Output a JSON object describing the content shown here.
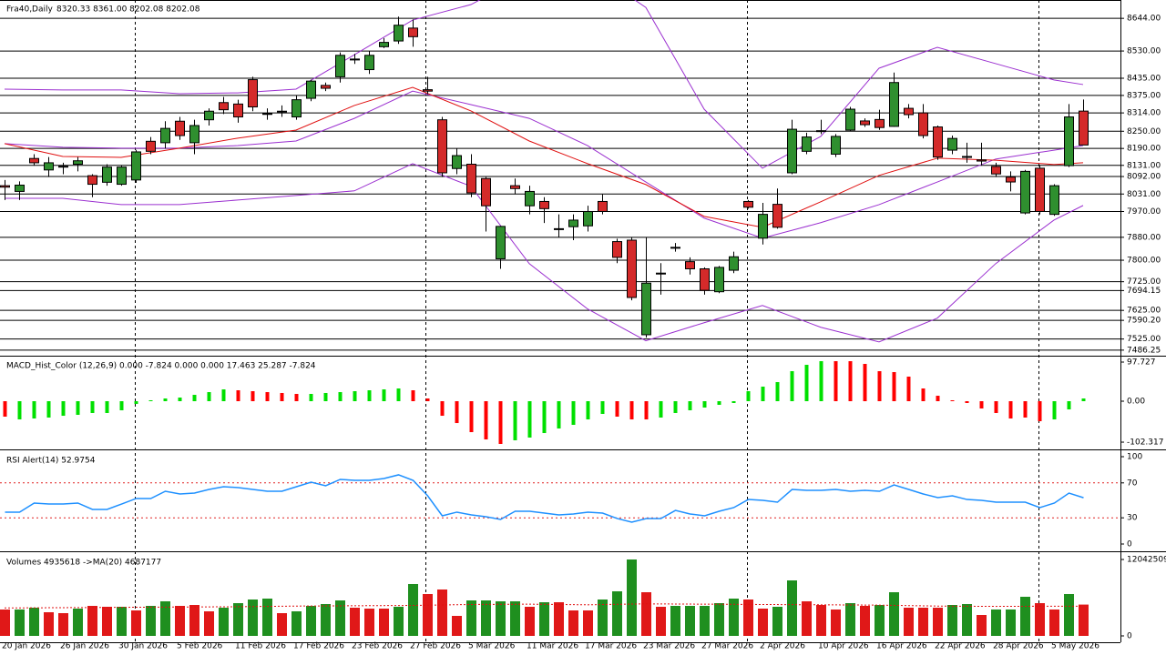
{
  "chart_data": [
    {
      "type": "candlestick",
      "title": "Fra40,Daily",
      "ohlc_label": "8320.33 8361.00 8202.08 8202.08",
      "bull_color": "#2f8f2f",
      "bear_color": "#d42a2a",
      "grid": true,
      "categories": [
        "20 Jan 2026",
        null,
        null,
        null,
        "26 Jan 2026",
        null,
        null,
        null,
        "30 Jan 2026",
        null,
        null,
        null,
        "5 Feb 2026",
        null,
        null,
        null,
        "11 Feb 2026",
        null,
        null,
        null,
        "17 Feb 2026",
        null,
        null,
        null,
        "23 Feb 2026",
        null,
        null,
        null,
        "27 Feb 2026",
        null,
        null,
        null,
        "5 Mar 2026",
        null,
        null,
        null,
        "11 Mar 2026",
        null,
        null,
        null,
        "17 Mar 2026",
        null,
        null,
        null,
        "23 Mar 2026",
        null,
        null,
        null,
        "27 Mar 2026",
        null,
        null,
        null,
        "2 Apr 2026",
        null,
        null,
        null,
        "10 Apr 2026",
        null,
        null,
        null,
        "16 Apr 2026",
        null,
        null,
        null,
        "22 Apr 2026",
        null,
        null,
        null,
        "28 Apr 2026",
        null,
        null,
        null,
        "5 May 2026",
        null,
        null
      ],
      "open": [
        8060,
        8040,
        8155,
        8115,
        8128,
        8135,
        8095,
        8072,
        8065,
        8080,
        8215,
        8210,
        8285,
        8210,
        8290,
        8350,
        8345,
        8430,
        8310,
        8318,
        8300,
        8365,
        8410,
        8440,
        8500,
        8465,
        8545,
        8565,
        8610,
        8395,
        8290,
        8120,
        8135,
        8085,
        7805,
        8060,
        7990,
        8005,
        7910,
        7917,
        7920,
        8005,
        7865,
        7870,
        7540,
        7755,
        7845,
        7795,
        7770,
        7690,
        7765,
        8005,
        7877,
        7995,
        8105,
        8180,
        8250,
        8170,
        8254,
        8286,
        8291,
        8267,
        8330,
        8314,
        8265,
        8184,
        8162,
        8150,
        8127,
        8090,
        7965,
        8121,
        7960,
        8130,
        8320.33
      ],
      "high": [
        8080,
        8075,
        8170,
        8160,
        8140,
        8160,
        8100,
        8135,
        8130,
        8185,
        8230,
        8285,
        8300,
        8290,
        8330,
        8370,
        8360,
        8440,
        8330,
        8340,
        8375,
        8430,
        8420,
        8525,
        8520,
        8530,
        8575,
        8650,
        8640,
        8440,
        8300,
        8190,
        8170,
        8090,
        7920,
        8085,
        8060,
        8020,
        7960,
        7960,
        7990,
        8030,
        7875,
        7880,
        7880,
        7790,
        7860,
        7810,
        7775,
        7780,
        7830,
        8010,
        8000,
        8050,
        8290,
        8245,
        8290,
        8240,
        8335,
        8295,
        8325,
        8455,
        8345,
        8345,
        8270,
        8235,
        8210,
        8210,
        8140,
        8110,
        8115,
        8130,
        8065,
        8345,
        8361
      ],
      "low": [
        8010,
        8010,
        8130,
        8090,
        8100,
        8110,
        8020,
        8060,
        8060,
        8070,
        8170,
        8190,
        8220,
        8170,
        8270,
        8310,
        8280,
        8320,
        8290,
        8300,
        8290,
        8355,
        8390,
        8420,
        8485,
        8450,
        8540,
        8555,
        8545,
        8380,
        8090,
        8100,
        8020,
        7900,
        7770,
        8030,
        7960,
        7930,
        7880,
        7870,
        7900,
        7960,
        7790,
        7660,
        7530,
        7680,
        7830,
        7750,
        7680,
        7685,
        7755,
        7980,
        7855,
        7910,
        8100,
        8170,
        8240,
        8160,
        8250,
        8265,
        8255,
        8265,
        8295,
        8225,
        8150,
        8170,
        8140,
        8130,
        8090,
        8040,
        7960,
        7960,
        7955,
        8125,
        8202.08
      ],
      "close": [
        8055,
        8062,
        8140,
        8140,
        8125,
        8147,
        8065,
        8125,
        8125,
        8178,
        8180,
        8260,
        8235,
        8270,
        8320,
        8325,
        8300,
        8335,
        8312,
        8320,
        8360,
        8425,
        8400,
        8515,
        8502,
        8515,
        8560,
        8620,
        8580,
        8390,
        8105,
        8165,
        8035,
        7990,
        7918,
        8050,
        8040,
        7980,
        7908,
        7940,
        7970,
        7970,
        7810,
        7670,
        7720,
        7753,
        7843,
        7770,
        7695,
        7775,
        7812,
        7985,
        7960,
        7915,
        8257,
        8230,
        8252,
        8232,
        8327,
        8273,
        8263,
        8420,
        8308,
        8235,
        8160,
        8225,
        8160,
        8146,
        8101,
        8073,
        8110,
        7970,
        8060,
        8300,
        8202.08
      ],
      "overlays": [
        {
          "color": "#9b30d0",
          "x": [
            0,
            4,
            8,
            12,
            16,
            20,
            24,
            28,
            32,
            36,
            40,
            44,
            48,
            52,
            56,
            60,
            64,
            68,
            72,
            74
          ],
          "values": [
            8397,
            8394,
            8394,
            8381,
            8384,
            8397,
            8517,
            8638,
            8692,
            8800,
            8820,
            8682,
            8327,
            8121,
            8232,
            8470,
            8543,
            8486,
            8429,
            8413
          ]
        },
        {
          "color": "#9b30d0",
          "x": [
            0,
            4,
            8,
            12,
            16,
            20,
            24,
            28,
            32,
            36,
            40,
            44,
            48,
            52,
            56,
            60,
            64,
            68,
            72,
            74
          ],
          "values": [
            8207,
            8194,
            8191,
            8191,
            8200,
            8216,
            8295,
            8390,
            8343,
            8295,
            8200,
            8073,
            7947,
            7877,
            7931,
            7994,
            8073,
            8153,
            8184,
            8200
          ]
        },
        {
          "color": "#9b30d0",
          "x": [
            0,
            4,
            8,
            12,
            16,
            20,
            24,
            28,
            32,
            36,
            40,
            44,
            48,
            52,
            56,
            60,
            64,
            68,
            72,
            74
          ],
          "values": [
            8016,
            8016,
            7994,
            7994,
            8010,
            8026,
            8042,
            8137,
            8058,
            7788,
            7630,
            7519,
            7582,
            7642,
            7566,
            7515,
            7598,
            7788,
            7940,
            7991
          ]
        },
        {
          "color": "#e01010",
          "x": [
            0,
            4,
            8,
            12,
            16,
            20,
            24,
            28,
            32,
            36,
            40,
            44,
            48,
            52,
            56,
            60,
            64,
            68,
            72,
            74
          ],
          "values": [
            8207,
            8162,
            8159,
            8191,
            8226,
            8254,
            8340,
            8403,
            8321,
            8216,
            8137,
            8064,
            7953,
            7915,
            8004,
            8096,
            8156,
            8149,
            8134,
            8140
          ]
        }
      ],
      "ylim": [
        7470,
        8708
      ],
      "yticks": [
        {
          "value": 8644,
          "label": "8644.00"
        },
        {
          "value": 8530,
          "label": "8530.00"
        },
        {
          "value": 8435,
          "label": "8435.00"
        },
        {
          "value": 8375,
          "label": "8375.00"
        },
        {
          "value": 8314,
          "label": "8314.00"
        },
        {
          "value": 8250,
          "label": "8250.00"
        },
        {
          "value": 8190,
          "label": "8190.00"
        },
        {
          "value": 8131,
          "label": "8131.00"
        },
        {
          "value": 8092,
          "label": "8092.00"
        },
        {
          "value": 8031,
          "label": "8031.00"
        },
        {
          "value": 7970,
          "label": "7970.00"
        },
        {
          "value": 7880,
          "label": "7880.00"
        },
        {
          "value": 7800,
          "label": "7800.00"
        },
        {
          "value": 7725,
          "label": "7725.00"
        },
        7694.15,
        {
          "value": 7625,
          "label": "7625.00"
        },
        {
          "value": 7590.2,
          "label": "7590.20"
        },
        {
          "value": 7525,
          "label": "7525.00"
        },
        7486.25
      ]
    },
    {
      "type": "bar",
      "title": "MACD_Hist_Color (12,26,9) 0.000 -7.824 0.000 0.000 17.463 25.287 -7.824",
      "values": [
        -38.6,
        -45.5,
        -43.2,
        -40.9,
        -36.4,
        -34.1,
        -29.5,
        -29.5,
        -22.7,
        -6.8,
        2.3,
        6.8,
        9.1,
        15.9,
        22.7,
        29.5,
        27.3,
        25.0,
        22.7,
        20.5,
        18.2,
        18.2,
        20.5,
        22.7,
        25.0,
        27.3,
        29.5,
        31.8,
        27.3,
        6.8,
        -36.4,
        -54.6,
        -77.3,
        -95.5,
        -106.8,
        -97.7,
        -90.9,
        -79.6,
        -68.2,
        -59.1,
        -45.5,
        -31.8,
        -38.6,
        -45.5,
        -45.5,
        -40.9,
        -29.5,
        -22.7,
        -15.9,
        -9.1,
        -4.5,
        25.0,
        36.4,
        47.7,
        75.0,
        90.9,
        100.0,
        100.0,
        100.0,
        93.2,
        75.0,
        72.7,
        61.4,
        31.8,
        13.6,
        2.3,
        -4.5,
        -18.2,
        -29.5,
        -43.2,
        -40.9,
        -50.0,
        -45.5,
        -20.5,
        6.8
      ],
      "colors": [
        "#ff0000",
        "#00e000",
        "#00e000",
        "#00e000",
        "#00e000",
        "#00e000",
        "#00e000",
        "#00e000",
        "#00e000",
        "#00e000",
        "#00e000",
        "#00e000",
        "#00e000",
        "#00e000",
        "#00e000",
        "#00e000",
        "#ff0000",
        "#ff0000",
        "#ff0000",
        "#ff0000",
        "#ff0000",
        "#00e000",
        "#00e000",
        "#00e000",
        "#00e000",
        "#00e000",
        "#00e000",
        "#00e000",
        "#ff0000",
        "#ff0000",
        "#ff0000",
        "#ff0000",
        "#ff0000",
        "#ff0000",
        "#ff0000",
        "#00e000",
        "#00e000",
        "#00e000",
        "#00e000",
        "#00e000",
        "#00e000",
        "#00e000",
        "#ff0000",
        "#ff0000",
        "#ff0000",
        "#00e000",
        "#00e000",
        "#00e000",
        "#00e000",
        "#00e000",
        "#00e000",
        "#00e000",
        "#00e000",
        "#00e000",
        "#00e000",
        "#00e000",
        "#00e000",
        "#ff0000",
        "#ff0000",
        "#ff0000",
        "#ff0000",
        "#ff0000",
        "#ff0000",
        "#ff0000",
        "#ff0000",
        "#ff0000",
        "#ff0000",
        "#ff0000",
        "#ff0000",
        "#ff0000",
        "#ff0000",
        "#ff0000",
        "#00e000",
        "#00e000",
        "#00e000"
      ],
      "ylim": [
        -115.9,
        111.4
      ],
      "yticks": [
        97.727,
        {
          "value": 0,
          "label": "0.00"
        },
        -102.317
      ]
    },
    {
      "type": "line",
      "title": "RSI Alert(14) 52.9754",
      "color": "#1e90ff",
      "level_color": "#e02020",
      "values": [
        36.5,
        36.5,
        46.9,
        45.8,
        45.8,
        46.9,
        39.6,
        39.6,
        45.8,
        52.1,
        52.1,
        60.4,
        57.3,
        58.3,
        62.5,
        65.6,
        64.6,
        62.5,
        60.4,
        60.4,
        65.6,
        70.8,
        66.7,
        74.0,
        72.9,
        72.9,
        75.0,
        79.2,
        72.9,
        55.2,
        32.3,
        36.5,
        33.3,
        31.3,
        28.1,
        37.5,
        37.5,
        35.4,
        33.3,
        34.4,
        36.5,
        35.4,
        29.2,
        25.0,
        29.2,
        29.2,
        38.5,
        34.4,
        32.3,
        37.5,
        41.7,
        51.0,
        50.0,
        47.9,
        62.5,
        61.5,
        61.5,
        62.5,
        60.4,
        61.5,
        60.4,
        67.7,
        62.5,
        57.3,
        53.1,
        55.2,
        51.0,
        50.0,
        47.9,
        47.9,
        47.9,
        41.7,
        46.9,
        58.3,
        52.98
      ],
      "levels": [
        70,
        30
      ],
      "ylim": [
        -6.25,
        106.25
      ],
      "yticks": [
        100,
        70,
        30,
        0
      ]
    },
    {
      "type": "bar",
      "title": "Volumes 4935618  ->MA(20) 4687177",
      "values": [
        4158000,
        4158000,
        4444000,
        3727000,
        3584000,
        4301000,
        4731000,
        4588000,
        4588000,
        4014000,
        4731000,
        5448000,
        4731000,
        4874000,
        3871000,
        4444000,
        5161000,
        5735000,
        5878000,
        3584000,
        3871000,
        4731000,
        5018000,
        5591000,
        4444000,
        4301000,
        4301000,
        4588000,
        8172000,
        6595000,
        7312000,
        3154000,
        5591000,
        5591000,
        5448000,
        5448000,
        4588000,
        5304000,
        5304000,
        4014000,
        4014000,
        5735000,
        7025000,
        12042509,
        6881000,
        4588000,
        4731000,
        4731000,
        4731000,
        5161000,
        5878000,
        5735000,
        4301000,
        4588000,
        8745000,
        5448000,
        4874000,
        4158000,
        5161000,
        4731000,
        4874000,
        6881000,
        4444000,
        4444000,
        4444000,
        4874000,
        5018000,
        3297000,
        4158000,
        4158000,
        6165000,
        5161000,
        4158000,
        6595000,
        4935618
      ],
      "colors": [
        "#e01818",
        "#1f8f1f",
        "#1f8f1f",
        "#e01818",
        "#e01818",
        "#1f8f1f",
        "#e01818",
        "#e01818",
        "#1f8f1f",
        "#e01818",
        "#1f8f1f",
        "#1f8f1f",
        "#e01818",
        "#e01818",
        "#e01818",
        "#1f8f1f",
        "#1f8f1f",
        "#1f8f1f",
        "#1f8f1f",
        "#e01818",
        "#1f8f1f",
        "#1f8f1f",
        "#1f8f1f",
        "#1f8f1f",
        "#e01818",
        "#e01818",
        "#e01818",
        "#1f8f1f",
        "#1f8f1f",
        "#e01818",
        "#e01818",
        "#e01818",
        "#1f8f1f",
        "#1f8f1f",
        "#1f8f1f",
        "#1f8f1f",
        "#e01818",
        "#1f8f1f",
        "#e01818",
        "#e01818",
        "#e01818",
        "#1f8f1f",
        "#1f8f1f",
        "#1f8f1f",
        "#e01818",
        "#e01818",
        "#1f8f1f",
        "#1f8f1f",
        "#1f8f1f",
        "#1f8f1f",
        "#1f8f1f",
        "#e01818",
        "#e01818",
        "#1f8f1f",
        "#1f8f1f",
        "#e01818",
        "#e01818",
        "#e01818",
        "#1f8f1f",
        "#e01818",
        "#1f8f1f",
        "#1f8f1f",
        "#e01818",
        "#e01818",
        "#e01818",
        "#1f8f1f",
        "#1f8f1f",
        "#e01818",
        "#1f8f1f",
        "#1f8f1f",
        "#1f8f1f",
        "#e01818",
        "#e01818",
        "#1f8f1f",
        "#e01818"
      ],
      "overlays": [
        {
          "color": "#e01010",
          "x": [
            0,
            4,
            8,
            12,
            16,
            20,
            24,
            28,
            32,
            36,
            40,
            44,
            48,
            52,
            56,
            60,
            64,
            68,
            72,
            74
          ],
          "values": [
            4400000,
            4450000,
            4500000,
            4550000,
            4600000,
            4700000,
            4750000,
            4800000,
            4950000,
            5000000,
            4900000,
            5050000,
            5000000,
            4950000,
            4900000,
            4850000,
            4700000,
            4650000,
            4680000,
            4687177
          ]
        }
      ],
      "ylim": [
        -1003541,
        13046050
      ],
      "yticks": [
        12042509,
        0
      ]
    }
  ]
}
